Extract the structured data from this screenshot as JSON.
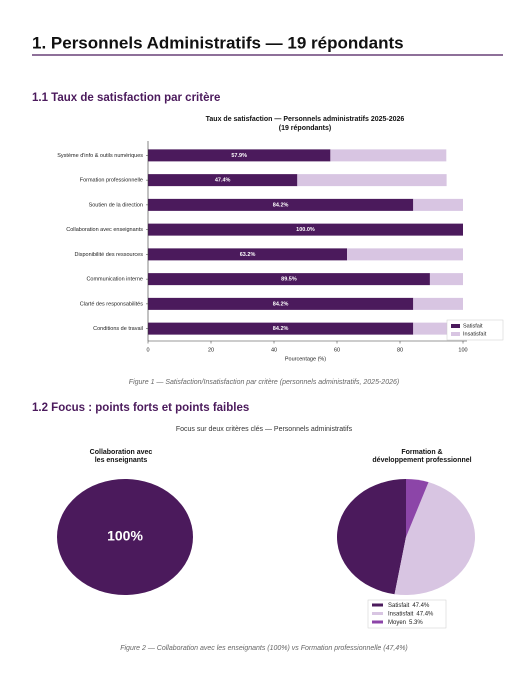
{
  "header": {
    "title": "1.  Personnels Administratifs  —  19 répondants"
  },
  "sections": [
    {
      "title": "1.1  Taux de satisfaction par critère",
      "caption": "Figure 1 — Satisfaction/Insatisfaction par critère (personnels administratifs, 2025-2026)"
    },
    {
      "title": "1.2  Focus : points forts et points faibles",
      "suptitle": "Focus sur deux critères clés — Personnels administratifs",
      "caption": "Figure 2 — Collaboration avec les enseignants (100%) vs Formation professionnelle (47,4%)"
    }
  ],
  "chart_data": [
    {
      "type": "stacked-barh",
      "title": [
        "Taux de satisfaction — Personnels administratifs 2025-2026",
        "(19 répondants)"
      ],
      "xlabel": "Pourcentage (%)",
      "categories": [
        "Système d'info & outils numériques",
        "Formation professionnelle",
        "Soutien de la direction",
        "Collaboration avec enseignants",
        "Disponibilité des ressources",
        "Communication interne",
        "Clarté des responsabilités",
        "Conditions de travail"
      ],
      "series": [
        {
          "name": "Satisfait",
          "color": "#4b1a5c",
          "values": [
            57.9,
            47.4,
            84.2,
            100.0,
            63.2,
            89.5,
            84.2,
            84.2
          ],
          "value_labels": [
            "57.9%",
            "47.4%",
            "84.2%",
            "100.0%",
            "63.2%",
            "89.5%",
            "84.2%",
            "84.2%"
          ]
        },
        {
          "name": "Insatisfait",
          "color": "#d8c5e2",
          "values": [
            36.8,
            47.4,
            15.8,
            0,
            36.8,
            10.5,
            15.8,
            15.8
          ]
        }
      ],
      "xlim": [
        0,
        100
      ],
      "xticks": [
        0,
        20,
        40,
        60,
        80,
        100
      ],
      "legend": "lower-right"
    },
    {
      "type": "pie",
      "title": [
        "Collaboration avec",
        "les enseignants"
      ],
      "categories": [
        "Satisfait"
      ],
      "values": [
        100
      ],
      "value_labels": [
        "100%"
      ],
      "colors": [
        "#4b1a5c"
      ]
    },
    {
      "type": "pie",
      "title": [
        "Formation &",
        "développement professionnel"
      ],
      "categories": [
        "Satisfait",
        "Insatisfait",
        "Moyen"
      ],
      "values": [
        47.4,
        47.4,
        5.3
      ],
      "value_labels": [
        "47.4%",
        "47.4%",
        "5.3%"
      ],
      "colors": [
        "#4b1a5c",
        "#d8c5e2",
        "#8c45a8"
      ],
      "legend": "lower-center"
    }
  ]
}
